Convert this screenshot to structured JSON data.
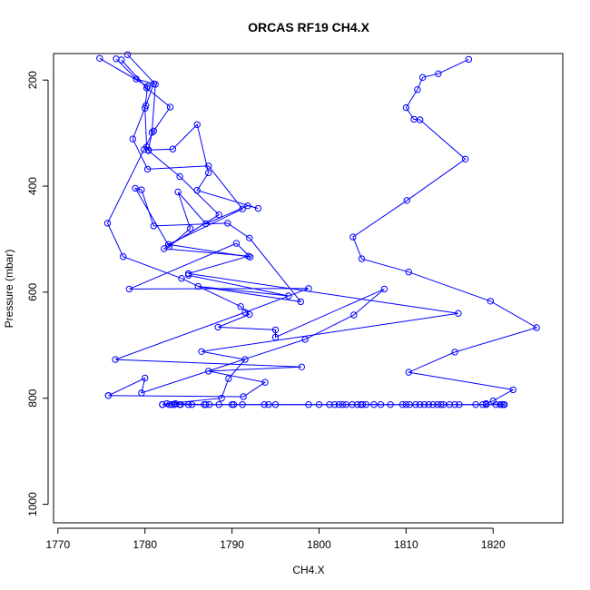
{
  "chart_data": {
    "type": "line",
    "title": "ORCAS RF19 CH4.X",
    "xlabel": "CH4.X",
    "ylabel": "Pressure (mbar)",
    "xlim": [
      1769.5,
      1828
    ],
    "ylim": [
      1035,
      150
    ],
    "y_reversed": true,
    "x_ticks": [
      "1770",
      "1780",
      "1790",
      "1800",
      "1810",
      "1820"
    ],
    "y_ticks": [
      "200",
      "400",
      "600",
      "800",
      "1000"
    ],
    "grid": false,
    "legend": "none",
    "line_color": "#0000ff",
    "marker": "open-circle",
    "series": [
      {
        "points": [
          [
            1817.2,
            161
          ],
          [
            1813.7,
            188
          ],
          [
            1811.9,
            195
          ],
          [
            1811.3,
            218
          ],
          [
            1810.0,
            252
          ],
          [
            1810.9,
            274
          ],
          [
            1811.6,
            275
          ],
          [
            1816.8,
            349
          ],
          [
            1810.1,
            427
          ],
          [
            1803.9,
            496
          ],
          [
            1804.9,
            537
          ],
          [
            1810.3,
            562
          ],
          [
            1819.7,
            617
          ],
          [
            1825.0,
            667
          ],
          [
            1815.6,
            713
          ],
          [
            1810.3,
            751
          ],
          [
            1822.3,
            784
          ],
          [
            1820.0,
            805
          ],
          [
            1819.2,
            810
          ]
        ]
      },
      {
        "points": [
          [
            1774.8,
            159
          ],
          [
            1780.3,
            212
          ],
          [
            1780.0,
            253
          ],
          [
            1780.2,
            326
          ],
          [
            1780.4,
            333
          ],
          [
            1784.0,
            382
          ],
          [
            1788.5,
            454
          ],
          [
            1782.2,
            518
          ],
          [
            1791.9,
            532
          ],
          [
            1785.0,
            565
          ],
          [
            1816.0,
            640
          ],
          [
            1786.5,
            712
          ],
          [
            1791.5,
            727
          ],
          [
            1789.6,
            763
          ],
          [
            1788.8,
            800
          ],
          [
            1782.5,
            810
          ]
        ]
      },
      {
        "points": [
          [
            1776.7,
            160
          ],
          [
            1779.0,
            198
          ],
          [
            1781.0,
            207
          ],
          [
            1780.1,
            248
          ],
          [
            1778.6,
            311
          ],
          [
            1780.3,
            368
          ],
          [
            1787.3,
            362
          ],
          [
            1791.2,
            443
          ],
          [
            1782.7,
            510
          ],
          [
            1792.1,
            534
          ],
          [
            1790.5,
            508
          ],
          [
            1778.2,
            594
          ],
          [
            1798.8,
            593
          ],
          [
            1791.5,
            638
          ],
          [
            1776.6,
            727
          ],
          [
            1798.0,
            741
          ],
          [
            1787.3,
            749
          ],
          [
            1793.8,
            770
          ],
          [
            1791.3,
            797
          ],
          [
            1775.8,
            795
          ]
        ]
      },
      {
        "points": [
          [
            1777.3,
            162
          ],
          [
            1780.2,
            215
          ],
          [
            1782.9,
            251
          ],
          [
            1781.0,
            296
          ],
          [
            1779.9,
            331
          ],
          [
            1775.7,
            470
          ],
          [
            1777.5,
            533
          ],
          [
            1784.2,
            574
          ],
          [
            1791.0,
            627
          ],
          [
            1792.0,
            642
          ],
          [
            1788.4,
            666
          ],
          [
            1795.0,
            671
          ],
          [
            1795.0,
            685
          ],
          [
            1807.5,
            594
          ],
          [
            1804.0,
            643
          ],
          [
            1798.4,
            689
          ],
          [
            1779.6,
            790
          ],
          [
            1780.0,
            762
          ],
          [
            1775.8,
            795
          ]
        ]
      },
      {
        "points": [
          [
            1778.0,
            152
          ],
          [
            1781.2,
            208
          ],
          [
            1780.8,
            299
          ],
          [
            1780.4,
            332
          ],
          [
            1783.2,
            330
          ],
          [
            1786.0,
            284
          ],
          [
            1787.3,
            375
          ],
          [
            1786.0,
            408
          ],
          [
            1793.0,
            442
          ],
          [
            1791.8,
            437
          ],
          [
            1787.0,
            471
          ],
          [
            1783.8,
            411
          ],
          [
            1785.2,
            480
          ],
          [
            1782.8,
            514
          ],
          [
            1778.9,
            404
          ],
          [
            1779.6,
            407
          ],
          [
            1781.0,
            475
          ],
          [
            1789.5,
            470
          ],
          [
            1792.0,
            498
          ],
          [
            1797.9,
            618
          ],
          [
            1786.1,
            589
          ],
          [
            1796.5,
            607
          ],
          [
            1785.0,
            568
          ]
        ]
      },
      {
        "points": [
          [
            1783.5,
            810
          ],
          [
            1786.8,
            812
          ],
          [
            1790.0,
            812
          ],
          [
            1795.0,
            812
          ],
          [
            1800.0,
            812
          ],
          [
            1805.0,
            812
          ],
          [
            1810.0,
            812
          ],
          [
            1815.0,
            812
          ],
          [
            1818.8,
            812
          ],
          [
            1821.0,
            812
          ],
          [
            1821.3,
            812
          ],
          [
            1784.0,
            812
          ],
          [
            1782.0,
            812
          ]
        ]
      },
      {
        "points": [
          [
            1782.0,
            812
          ],
          [
            1782.8,
            812
          ],
          [
            1783.1,
            812
          ],
          [
            1783.4,
            812
          ],
          [
            1784.1,
            812
          ],
          [
            1785.0,
            812
          ],
          [
            1785.4,
            812
          ],
          [
            1787.0,
            812
          ],
          [
            1787.4,
            812
          ],
          [
            1788.5,
            812
          ],
          [
            1790.2,
            812
          ],
          [
            1791.2,
            812
          ],
          [
            1793.7,
            812
          ],
          [
            1794.2,
            812
          ],
          [
            1798.8,
            812
          ],
          [
            1801.2,
            812
          ],
          [
            1801.8,
            812
          ],
          [
            1802.3,
            812
          ],
          [
            1802.7,
            812
          ],
          [
            1803.1,
            812
          ],
          [
            1803.8,
            812
          ],
          [
            1804.4,
            812
          ],
          [
            1804.8,
            812
          ],
          [
            1805.4,
            812
          ],
          [
            1806.3,
            812
          ],
          [
            1807.1,
            812
          ],
          [
            1808.2,
            812
          ],
          [
            1809.6,
            812
          ],
          [
            1810.4,
            812
          ],
          [
            1811.1,
            812
          ],
          [
            1811.6,
            812
          ],
          [
            1812.1,
            812
          ],
          [
            1812.6,
            812
          ],
          [
            1813.1,
            812
          ],
          [
            1813.6,
            812
          ],
          [
            1814.0,
            812
          ],
          [
            1814.3,
            812
          ],
          [
            1815.6,
            812
          ],
          [
            1816.1,
            812
          ],
          [
            1818.0,
            812
          ],
          [
            1819.2,
            812
          ],
          [
            1820.3,
            812
          ],
          [
            1820.8,
            812
          ],
          [
            1821.2,
            812
          ]
        ]
      }
    ]
  }
}
